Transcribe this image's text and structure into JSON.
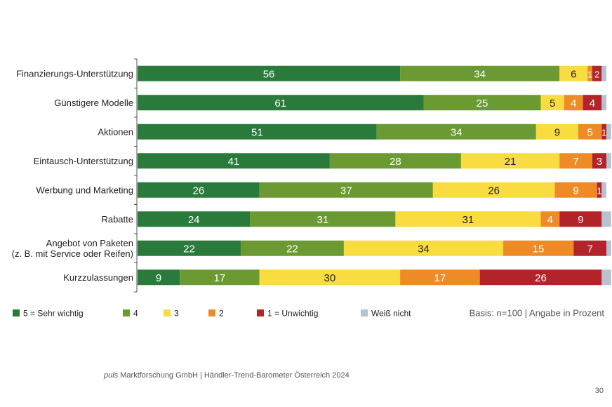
{
  "chart_data": {
    "type": "bar",
    "stacked": true,
    "orientation": "horizontal",
    "categories": [
      "Finanzierungs-Unterstützung",
      "Günstigere Modelle",
      "Aktionen",
      "Eintausch-Unterstützung",
      "Werbung und Marketing",
      "Rabatte",
      "Angebot von Paketen\n(z. B. mit Service oder Reifen)",
      "Kurzzulassungen"
    ],
    "series": [
      {
        "name": "5 = Sehr wichtig",
        "color": "#2a7a3b",
        "label_color": "#ffffff",
        "values": [
          56,
          61,
          51,
          41,
          26,
          24,
          22,
          9
        ]
      },
      {
        "name": "4",
        "color": "#6b9a32",
        "label_color": "#ffffff",
        "values": [
          34,
          25,
          34,
          28,
          37,
          31,
          22,
          17
        ]
      },
      {
        "name": "3",
        "color": "#f9dc3f",
        "label_color": "#222222",
        "values": [
          6,
          5,
          9,
          21,
          26,
          31,
          34,
          30
        ]
      },
      {
        "name": "2",
        "color": "#ef8b26",
        "label_color": "#ffffff",
        "values": [
          1,
          4,
          5,
          7,
          9,
          4,
          15,
          17
        ]
      },
      {
        "name": "1 = Unwichtig",
        "color": "#b3232a",
        "label_color": "#ffffff",
        "values": [
          2,
          4,
          1,
          3,
          1,
          9,
          7,
          26
        ]
      },
      {
        "name": "Weiß nicht",
        "color": "#b7c2d1",
        "label_color": "#222222",
        "values": [
          1,
          1,
          1,
          1,
          1,
          2,
          1,
          2
        ],
        "show_labels": false
      }
    ],
    "xlim": [
      0,
      100
    ],
    "legend_position": "bottom",
    "grid": false
  },
  "note": "Basis: n=100 | Angabe in Prozent",
  "source": {
    "brand": "puls",
    "text": " Marktforschung GmbH | Händler-Trend-Barometer Österreich 2024"
  },
  "page_number": "30"
}
